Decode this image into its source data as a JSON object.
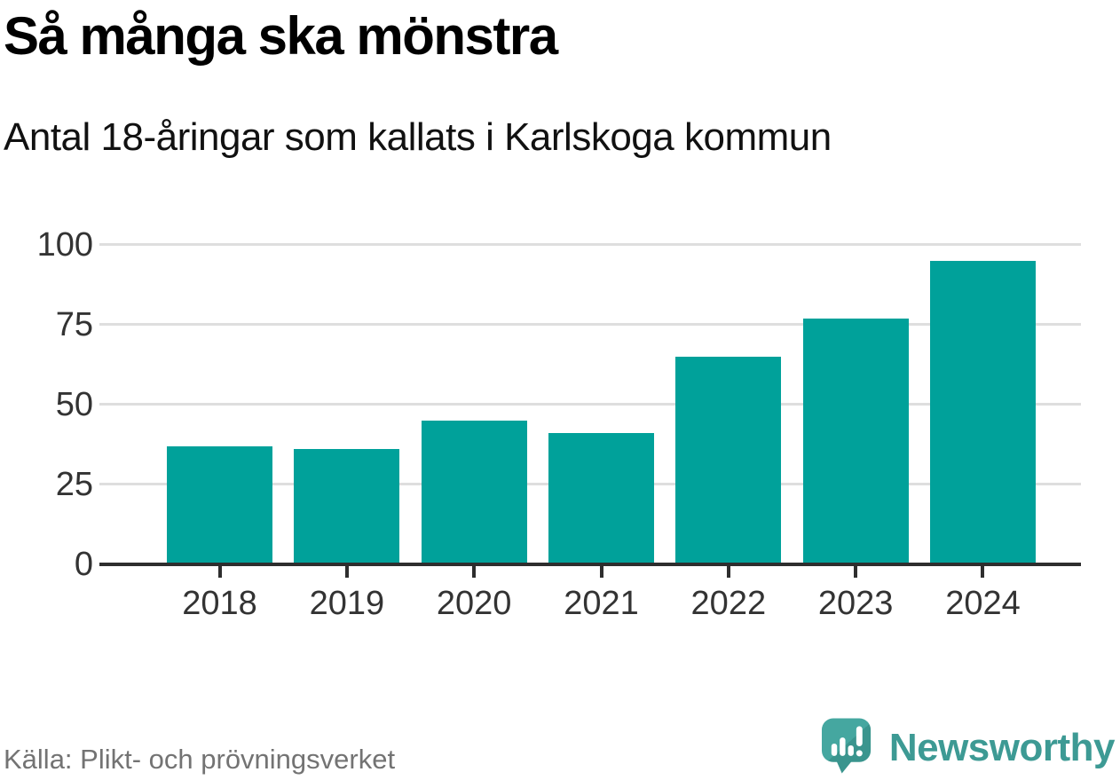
{
  "header": {
    "title": "Så många ska mönstra",
    "subtitle": "Antal 18-åringar som kallats i Karlskoga kommun"
  },
  "footer": {
    "source": "Källa: Plikt- och prövningsverket",
    "brand_name": "Newsworthy"
  },
  "icons": {
    "logo": "speech-bubble-bar-chart-exclamation-icon"
  },
  "colors": {
    "bar": "#00a19a",
    "gridline": "#dedede",
    "axis": "#2e2e2e",
    "axis_label": "#333333",
    "title": "#000000",
    "subtitle": "#111111",
    "source_text": "#737373",
    "brand_teal": "#3d9a94",
    "logo_bubble": "#42a49d",
    "logo_bubble_shade": "#3a958e"
  },
  "chart_data": {
    "type": "bar",
    "title": "Så många ska mönstra",
    "subtitle": "Antal 18-åringar som kallats i Karlskoga kommun",
    "categories": [
      "2018",
      "2019",
      "2020",
      "2021",
      "2022",
      "2023",
      "2024"
    ],
    "values": [
      37,
      36,
      45,
      41,
      65,
      77,
      95
    ],
    "xlabel": "",
    "ylabel": "",
    "ylim": [
      0,
      100
    ],
    "yticks": [
      0,
      25,
      50,
      75,
      100
    ],
    "grid": true,
    "legend": false,
    "bar_color": "#00a19a",
    "source": "Källa: Plikt- och prövningsverket"
  }
}
